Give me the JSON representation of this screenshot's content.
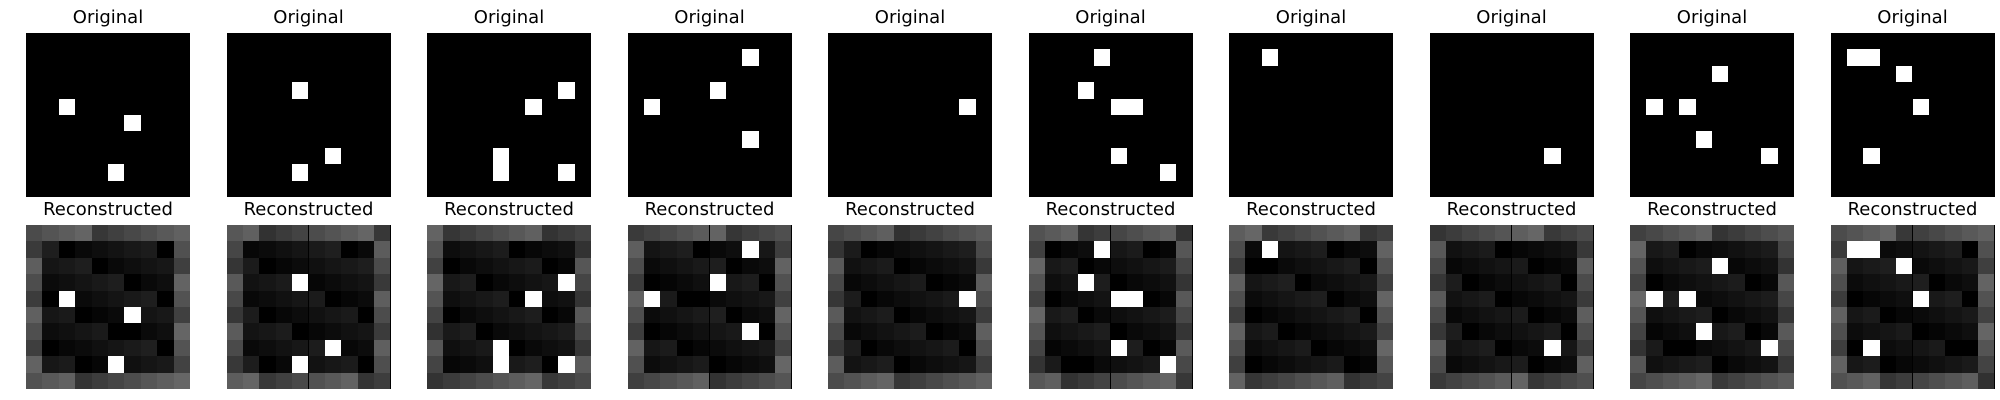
{
  "titles": {
    "original": "Original",
    "reconstructed": "Reconstructed"
  },
  "grid_size": 10,
  "colors": {
    "on": "#ffffff",
    "off": "#000000"
  },
  "samples": [
    {
      "on": [
        [
          4,
          2
        ],
        [
          5,
          6
        ],
        [
          8,
          5
        ]
      ]
    },
    {
      "on": [
        [
          3,
          4
        ],
        [
          7,
          6
        ],
        [
          8,
          4
        ]
      ]
    },
    {
      "on": [
        [
          3,
          8
        ],
        [
          4,
          6
        ],
        [
          7,
          4
        ],
        [
          8,
          4
        ],
        [
          8,
          8
        ]
      ]
    },
    {
      "on": [
        [
          1,
          7
        ],
        [
          3,
          5
        ],
        [
          4,
          1
        ],
        [
          6,
          7
        ]
      ]
    },
    {
      "on": [
        [
          4,
          8
        ]
      ]
    },
    {
      "on": [
        [
          1,
          4
        ],
        [
          3,
          3
        ],
        [
          4,
          5
        ],
        [
          4,
          6
        ],
        [
          7,
          5
        ],
        [
          8,
          8
        ]
      ]
    },
    {
      "on": [
        [
          1,
          2
        ]
      ]
    },
    {
      "on": [
        [
          7,
          7
        ]
      ]
    },
    {
      "on": [
        [
          2,
          5
        ],
        [
          4,
          1
        ],
        [
          4,
          3
        ],
        [
          6,
          4
        ],
        [
          7,
          8
        ]
      ]
    },
    {
      "on": [
        [
          1,
          1
        ],
        [
          1,
          2
        ],
        [
          2,
          4
        ],
        [
          4,
          5
        ],
        [
          7,
          2
        ]
      ]
    }
  ],
  "reconstruction": {
    "border_gray": 0.35,
    "noise_gray": 0.12
  }
}
